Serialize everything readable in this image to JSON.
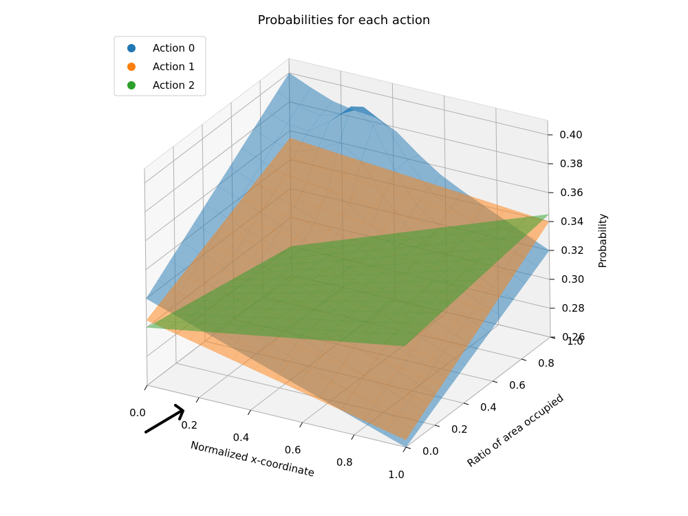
{
  "chart_data": {
    "type": "surface3d",
    "title": "Probabilities for each action",
    "xlabel": "Normalized x-coordinate",
    "ylabel": "Ratio of area occupied",
    "zlabel": "Probability",
    "xlim": [
      0.0,
      1.0
    ],
    "ylim": [
      0.0,
      1.0
    ],
    "zlim": [
      0.26,
      0.41
    ],
    "x_ticks": [
      "0.0",
      "0.2",
      "0.4",
      "0.6",
      "0.8",
      "1.0"
    ],
    "y_ticks": [
      "0.0",
      "0.2",
      "0.4",
      "0.6",
      "0.8",
      "1.0"
    ],
    "z_ticks": [
      "0.26",
      "0.28",
      "0.30",
      "0.32",
      "0.34",
      "0.36",
      "0.38",
      "0.40"
    ],
    "legend": {
      "location": "upper-left"
    },
    "grid": true,
    "series": [
      {
        "name": "Action 0",
        "color": "#1f77b4",
        "corners": [
          {
            "x": 0.0,
            "y": 0.0,
            "z": 0.32
          },
          {
            "x": 1.0,
            "y": 0.0,
            "z": 0.26
          },
          {
            "x": 1.0,
            "y": 1.0,
            "z": 0.32
          },
          {
            "x": 0.0,
            "y": 1.0,
            "z": 0.4
          }
        ],
        "peak": {
          "x": 0.35,
          "y": 0.85,
          "z": 0.405
        }
      },
      {
        "name": "Action 1",
        "color": "#ff7f0e",
        "corners": [
          {
            "x": 0.0,
            "y": 0.0,
            "z": 0.305
          },
          {
            "x": 1.0,
            "y": 0.0,
            "z": 0.265
          },
          {
            "x": 1.0,
            "y": 1.0,
            "z": 0.34
          },
          {
            "x": 0.0,
            "y": 1.0,
            "z": 0.355
          }
        ]
      },
      {
        "name": "Action 2",
        "color": "#2ca02c",
        "corners": [
          {
            "x": 0.0,
            "y": 0.0,
            "z": 0.3
          },
          {
            "x": 1.0,
            "y": 0.0,
            "z": 0.33
          },
          {
            "x": 1.0,
            "y": 1.0,
            "z": 0.345
          },
          {
            "x": 0.0,
            "y": 1.0,
            "z": 0.28
          }
        ]
      }
    ]
  }
}
